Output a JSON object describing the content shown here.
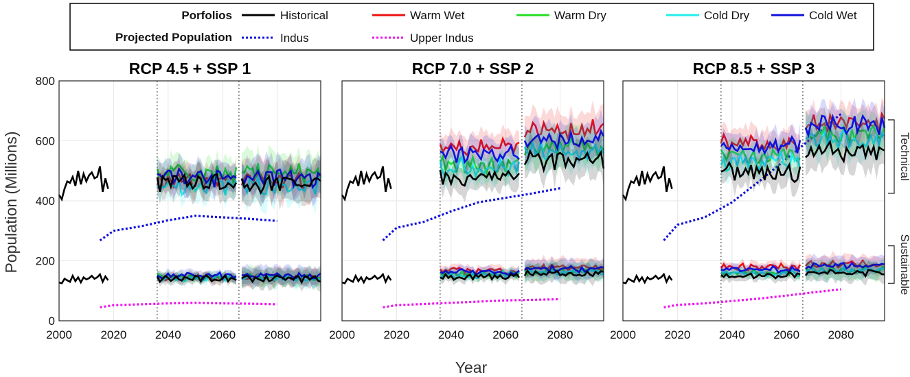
{
  "chart_data": {
    "type": "line",
    "figure": {
      "xlabel": "Year",
      "ylabel": "Population (Millions)",
      "xlim": [
        2000,
        2096
      ],
      "ylim": [
        0,
        800
      ],
      "xticks": [
        2000,
        2020,
        2040,
        2060,
        2080
      ],
      "yticks": [
        0,
        200,
        400,
        600,
        800
      ],
      "period_boundaries": [
        2036,
        2066
      ],
      "grid": true,
      "legend_position": "top",
      "bracket_labels": {
        "technical": {
          "label": "Technical",
          "range": [
            425,
            670
          ]
        },
        "sustainable": {
          "label": "Sustainable",
          "range": [
            125,
            250
          ]
        }
      }
    },
    "legend": {
      "portfolios_title": "Porfolios",
      "population_title": "Projected Population",
      "portfolios": [
        {
          "key": "historical",
          "name": "Historical",
          "color": "#000000"
        },
        {
          "key": "warm_wet",
          "name": "Warm Wet",
          "color": "#ee1111"
        },
        {
          "key": "warm_dry",
          "name": "Warm Dry",
          "color": "#22dd22"
        },
        {
          "key": "cold_dry",
          "name": "Cold Dry",
          "color": "#22eeee"
        },
        {
          "key": "cold_wet",
          "name": "Cold Wet",
          "color": "#1111dd"
        }
      ],
      "populations": [
        {
          "key": "indus",
          "name": "Indus",
          "color": "#1111dd"
        },
        {
          "key": "upper_indus",
          "name": "Upper Indus",
          "color": "#ee11ee"
        }
      ]
    },
    "historical": {
      "years": [
        2000,
        2001,
        2002,
        2003,
        2004,
        2005,
        2006,
        2007,
        2008,
        2009,
        2010,
        2011,
        2012,
        2013,
        2014,
        2015,
        2016,
        2017,
        2018
      ],
      "technical": [
        420,
        405,
        440,
        465,
        460,
        480,
        450,
        500,
        455,
        490,
        465,
        485,
        495,
        475,
        480,
        515,
        430,
        475,
        440
      ],
      "sustainable": [
        128,
        125,
        140,
        135,
        130,
        150,
        132,
        145,
        128,
        145,
        138,
        142,
        150,
        140,
        145,
        155,
        130,
        148,
        135
      ]
    },
    "panels": [
      {
        "title": "RCP 4.5 + SSP 1",
        "projected_population": {
          "indus": {
            "x": [
              2015,
              2020,
              2030,
              2040,
              2050,
              2060,
              2070,
              2080
            ],
            "y": [
              268,
              300,
              315,
              335,
              350,
              345,
              340,
              333
            ]
          },
          "upper_indus": {
            "x": [
              2015,
              2020,
              2030,
              2040,
              2050,
              2060,
              2070,
              2080
            ],
            "y": [
              45,
              52,
              55,
              58,
              60,
              58,
              57,
              55
            ]
          }
        },
        "technical": {
          "historical": 460,
          "warm_wet": 466,
          "warm_dry": 492,
          "cold_dry": 448,
          "cold_wet": 474
        },
        "sustainable": {
          "historical": 140,
          "warm_wet": 144,
          "warm_dry": 146,
          "cold_dry": 142,
          "cold_wet": 150
        }
      },
      {
        "title": "RCP 7.0 + SSP 2",
        "projected_population": {
          "indus": {
            "x": [
              2015,
              2020,
              2030,
              2040,
              2050,
              2060,
              2070,
              2080
            ],
            "y": [
              268,
              310,
              330,
              365,
              395,
              410,
              425,
              442
            ]
          },
          "upper_indus": {
            "x": [
              2015,
              2020,
              2030,
              2040,
              2050,
              2060,
              2070,
              2080
            ],
            "y": [
              45,
              52,
              56,
              60,
              64,
              68,
              70,
              72
            ]
          }
        },
        "technical": {
          "historical": 482,
          "warm_wet": 582,
          "warm_dry": 522,
          "cold_dry": 512,
          "cold_wet": 552
        },
        "sustainable": {
          "historical": 148,
          "warm_wet": 168,
          "warm_dry": 155,
          "cold_dry": 152,
          "cold_wet": 162
        }
      },
      {
        "title": "RCP 8.5 + SSP 3",
        "projected_population": {
          "indus": {
            "x": [
              2015,
              2020,
              2030,
              2040,
              2050,
              2060,
              2070,
              2080
            ],
            "y": [
              268,
              320,
              345,
              395,
              465,
              540,
              615,
              690
            ]
          },
          "upper_indus": {
            "x": [
              2015,
              2020,
              2030,
              2040,
              2050,
              2060,
              2070,
              2080
            ],
            "y": [
              45,
              53,
              58,
              66,
              74,
              84,
              95,
              105
            ]
          }
        },
        "technical": {
          "historical": 492,
          "warm_wet": 592,
          "warm_dry": 552,
          "cold_dry": 532,
          "cold_wet": 582
        },
        "sustainable": {
          "historical": 150,
          "warm_wet": 180,
          "warm_dry": 160,
          "cold_dry": 158,
          "cold_wet": 172
        }
      }
    ]
  }
}
